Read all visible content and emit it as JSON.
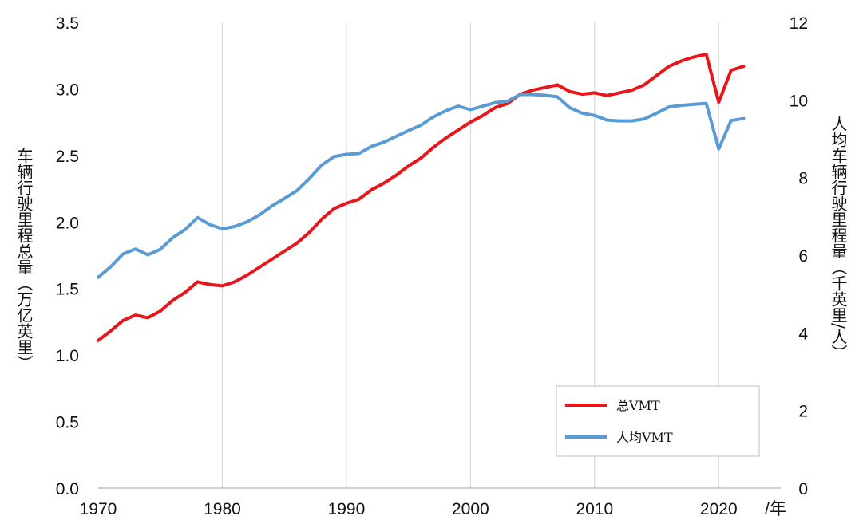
{
  "chart_data": {
    "type": "line",
    "xlabel": "/年",
    "y_left_label": "车辆行驶里程总量（万亿英里）",
    "y_right_label": "人均车辆行驶里程量（千英里/人）",
    "xlim": [
      1970,
      2025
    ],
    "x_ticks": [
      1970,
      1980,
      1990,
      2000,
      2010,
      2020
    ],
    "y_left_lim": [
      0,
      3.5
    ],
    "y_left_ticks": [
      "0.0",
      "0.5",
      "1.0",
      "1.5",
      "2.0",
      "2.5",
      "3.0",
      "3.5"
    ],
    "y_right_lim": [
      0,
      12
    ],
    "y_right_ticks": [
      "0",
      "2",
      "4",
      "6",
      "8",
      "10",
      "12"
    ],
    "grid": "vertical",
    "legend_position": "bottom-right",
    "series": [
      {
        "name": "总VMT",
        "axis": "left",
        "color": "#e8161b",
        "x": [
          1970,
          1971,
          1972,
          1973,
          1974,
          1975,
          1976,
          1977,
          1978,
          1979,
          1980,
          1981,
          1982,
          1983,
          1984,
          1985,
          1986,
          1987,
          1988,
          1989,
          1990,
          1991,
          1992,
          1993,
          1994,
          1995,
          1996,
          1997,
          1998,
          1999,
          2000,
          2001,
          2002,
          2003,
          2004,
          2005,
          2006,
          2007,
          2008,
          2009,
          2010,
          2011,
          2012,
          2013,
          2014,
          2015,
          2016,
          2017,
          2018,
          2019,
          2020,
          2021,
          2022
        ],
        "values": [
          1.11,
          1.18,
          1.26,
          1.3,
          1.28,
          1.33,
          1.41,
          1.47,
          1.55,
          1.53,
          1.52,
          1.55,
          1.6,
          1.66,
          1.72,
          1.78,
          1.84,
          1.92,
          2.02,
          2.1,
          2.14,
          2.17,
          2.24,
          2.29,
          2.35,
          2.42,
          2.48,
          2.56,
          2.63,
          2.69,
          2.75,
          2.8,
          2.86,
          2.89,
          2.96,
          2.99,
          3.01,
          3.03,
          2.98,
          2.96,
          2.97,
          2.95,
          2.97,
          2.99,
          3.03,
          3.1,
          3.17,
          3.21,
          3.24,
          3.26,
          2.9,
          3.14,
          3.17
        ]
      },
      {
        "name": "人均VMT",
        "axis": "right",
        "color": "#5b9bd5",
        "x": [
          1970,
          1971,
          1972,
          1973,
          1974,
          1975,
          1976,
          1977,
          1978,
          1979,
          1980,
          1981,
          1982,
          1983,
          1984,
          1985,
          1986,
          1987,
          1988,
          1989,
          1990,
          1991,
          1992,
          1993,
          1994,
          1995,
          1996,
          1997,
          1998,
          1999,
          2000,
          2001,
          2002,
          2003,
          2004,
          2005,
          2006,
          2007,
          2008,
          2009,
          2010,
          2011,
          2012,
          2013,
          2014,
          2015,
          2016,
          2017,
          2018,
          2019,
          2020,
          2021,
          2022
        ],
        "values": [
          5.43,
          5.7,
          6.03,
          6.16,
          6.01,
          6.15,
          6.45,
          6.66,
          6.97,
          6.79,
          6.68,
          6.74,
          6.86,
          7.04,
          7.27,
          7.46,
          7.66,
          7.97,
          8.32,
          8.54,
          8.6,
          8.62,
          8.8,
          8.91,
          9.06,
          9.21,
          9.35,
          9.56,
          9.72,
          9.84,
          9.75,
          9.84,
          9.93,
          9.97,
          10.14,
          10.14,
          10.12,
          10.08,
          9.8,
          9.66,
          9.6,
          9.48,
          9.46,
          9.46,
          9.51,
          9.66,
          9.82,
          9.86,
          9.89,
          9.91,
          8.74,
          9.47,
          9.52
        ]
      }
    ]
  }
}
